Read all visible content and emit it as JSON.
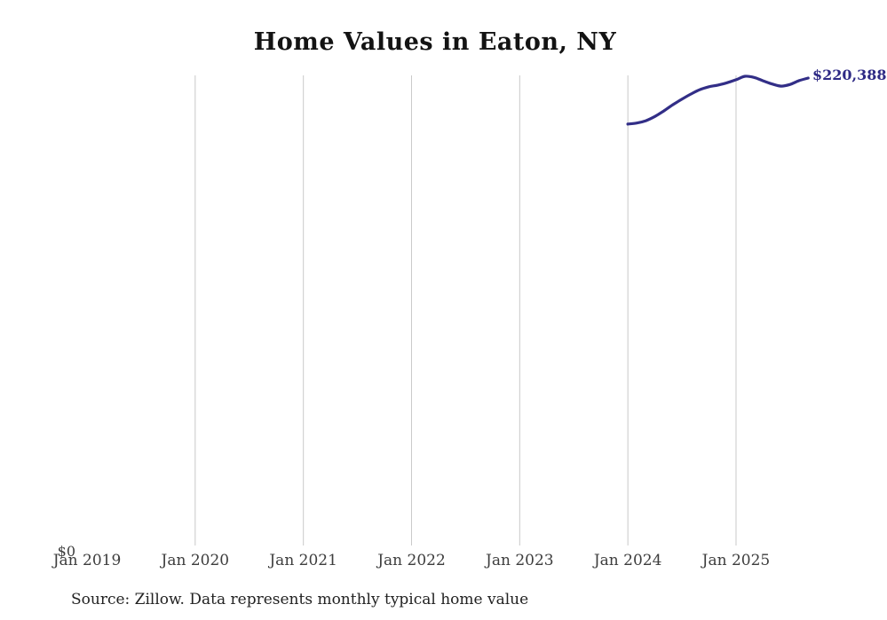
{
  "chart_data": {
    "type": "line",
    "title": "Home Values in Eaton, NY",
    "source_note": "Source: Zillow. Data represents monthly typical home value",
    "y_zero_label": "$0",
    "end_label": "$220,388",
    "x_tick_labels": [
      "Jan 2019",
      "Jan 2020",
      "Jan 2021",
      "Jan 2022",
      "Jan 2023",
      "Jan 2024",
      "Jan 2025"
    ],
    "gridline_ticks": [
      "Jan 2020",
      "Jan 2021",
      "Jan 2022",
      "Jan 2023",
      "Jan 2024",
      "Jan 2025"
    ],
    "x_range": [
      "Jan 2019",
      "Sep 2025"
    ],
    "ylim": [
      0,
      222000
    ],
    "grid": "vertical-only",
    "legend": "none",
    "line_color": "#322e87",
    "end_label_color": "#2e2a85",
    "grid_color": "#c9c9c9",
    "series": {
      "months": [
        "Jan 2024",
        "Feb 2024",
        "Mar 2024",
        "Apr 2024",
        "May 2024",
        "Jun 2024",
        "Jul 2024",
        "Aug 2024",
        "Sep 2024",
        "Oct 2024",
        "Nov 2024",
        "Dec 2024",
        "Jan 2025",
        "Feb 2025",
        "Mar 2025",
        "Apr 2025",
        "May 2025",
        "Jun 2025",
        "Jul 2025",
        "Aug 2025",
        "Sep 2025"
      ],
      "values": [
        198800,
        199300,
        200400,
        202400,
        205000,
        207900,
        210500,
        212900,
        215000,
        216300,
        217100,
        218200,
        219600,
        221200,
        220700,
        219100,
        217600,
        216600,
        217400,
        219200,
        220388
      ]
    }
  }
}
